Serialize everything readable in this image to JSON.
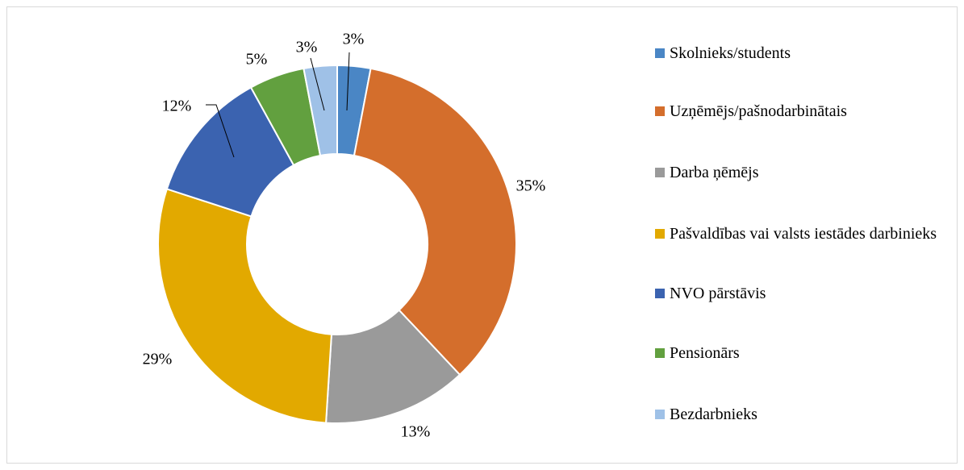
{
  "chart_data": {
    "type": "pie",
    "categories": [
      "Skolnieks/students",
      "Uzņēmējs/pašnodarbinātais",
      "Darba ņēmējs",
      "Pašvaldības vai valsts iestādes darbinieks",
      "NVO pārstāvis",
      "Pensionārs",
      "Bezdarbnieks"
    ],
    "values": [
      3,
      35,
      13,
      29,
      12,
      5,
      3
    ],
    "value_labels": [
      "3%",
      "35%",
      "13%",
      "29%",
      "12%",
      "5%",
      "3%"
    ],
    "colors": [
      "#4a86c5",
      "#d46e2c",
      "#9a9a9a",
      "#e2a900",
      "#3b63b0",
      "#62a03f",
      "#9fc1e7"
    ],
    "legend": "right"
  }
}
